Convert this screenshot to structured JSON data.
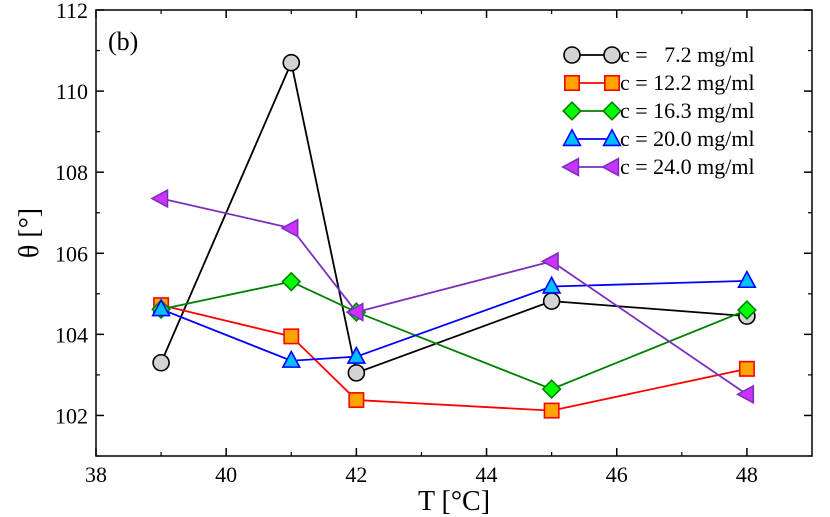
{
  "chart_data": {
    "type": "line",
    "panel_label": "(b)",
    "xlabel": "T [°C]",
    "ylabel": "θ [°]",
    "xlim": [
      38,
      49
    ],
    "ylim": [
      101,
      112
    ],
    "xticks": [
      38,
      40,
      42,
      44,
      46,
      48
    ],
    "yticks": [
      102,
      104,
      106,
      108,
      110,
      112
    ],
    "x": [
      39,
      41,
      42,
      45,
      48
    ],
    "legend_position": "top-right",
    "series": [
      {
        "name": "c =   7.2 mg/ml",
        "marker": "circle",
        "line_color": "#000000",
        "fill_color": "#d3d3d3",
        "values": [
          103.3,
          110.7,
          103.05,
          104.82,
          104.45
        ]
      },
      {
        "name": "c = 12.2 mg/ml",
        "marker": "square",
        "line_color": "#ff0000",
        "fill_color": "#ffa500",
        "values": [
          104.72,
          103.95,
          102.38,
          102.12,
          103.15
        ]
      },
      {
        "name": "c = 16.3 mg/ml",
        "marker": "diamond",
        "line_color": "#008000",
        "fill_color": "#00ff00",
        "values": [
          104.62,
          105.3,
          104.55,
          102.65,
          104.6
        ]
      },
      {
        "name": "c = 20.0 mg/ml",
        "marker": "triangle-up",
        "line_color": "#0000ff",
        "fill_color": "#00bfff",
        "values": [
          104.62,
          103.35,
          103.45,
          105.18,
          105.32
        ]
      },
      {
        "name": "c = 24.0 mg/ml",
        "marker": "triangle-left",
        "line_color": "#7b2fbf",
        "fill_color": "#cc33ff",
        "values": [
          107.35,
          106.62,
          104.55,
          105.8,
          102.52
        ]
      }
    ]
  }
}
